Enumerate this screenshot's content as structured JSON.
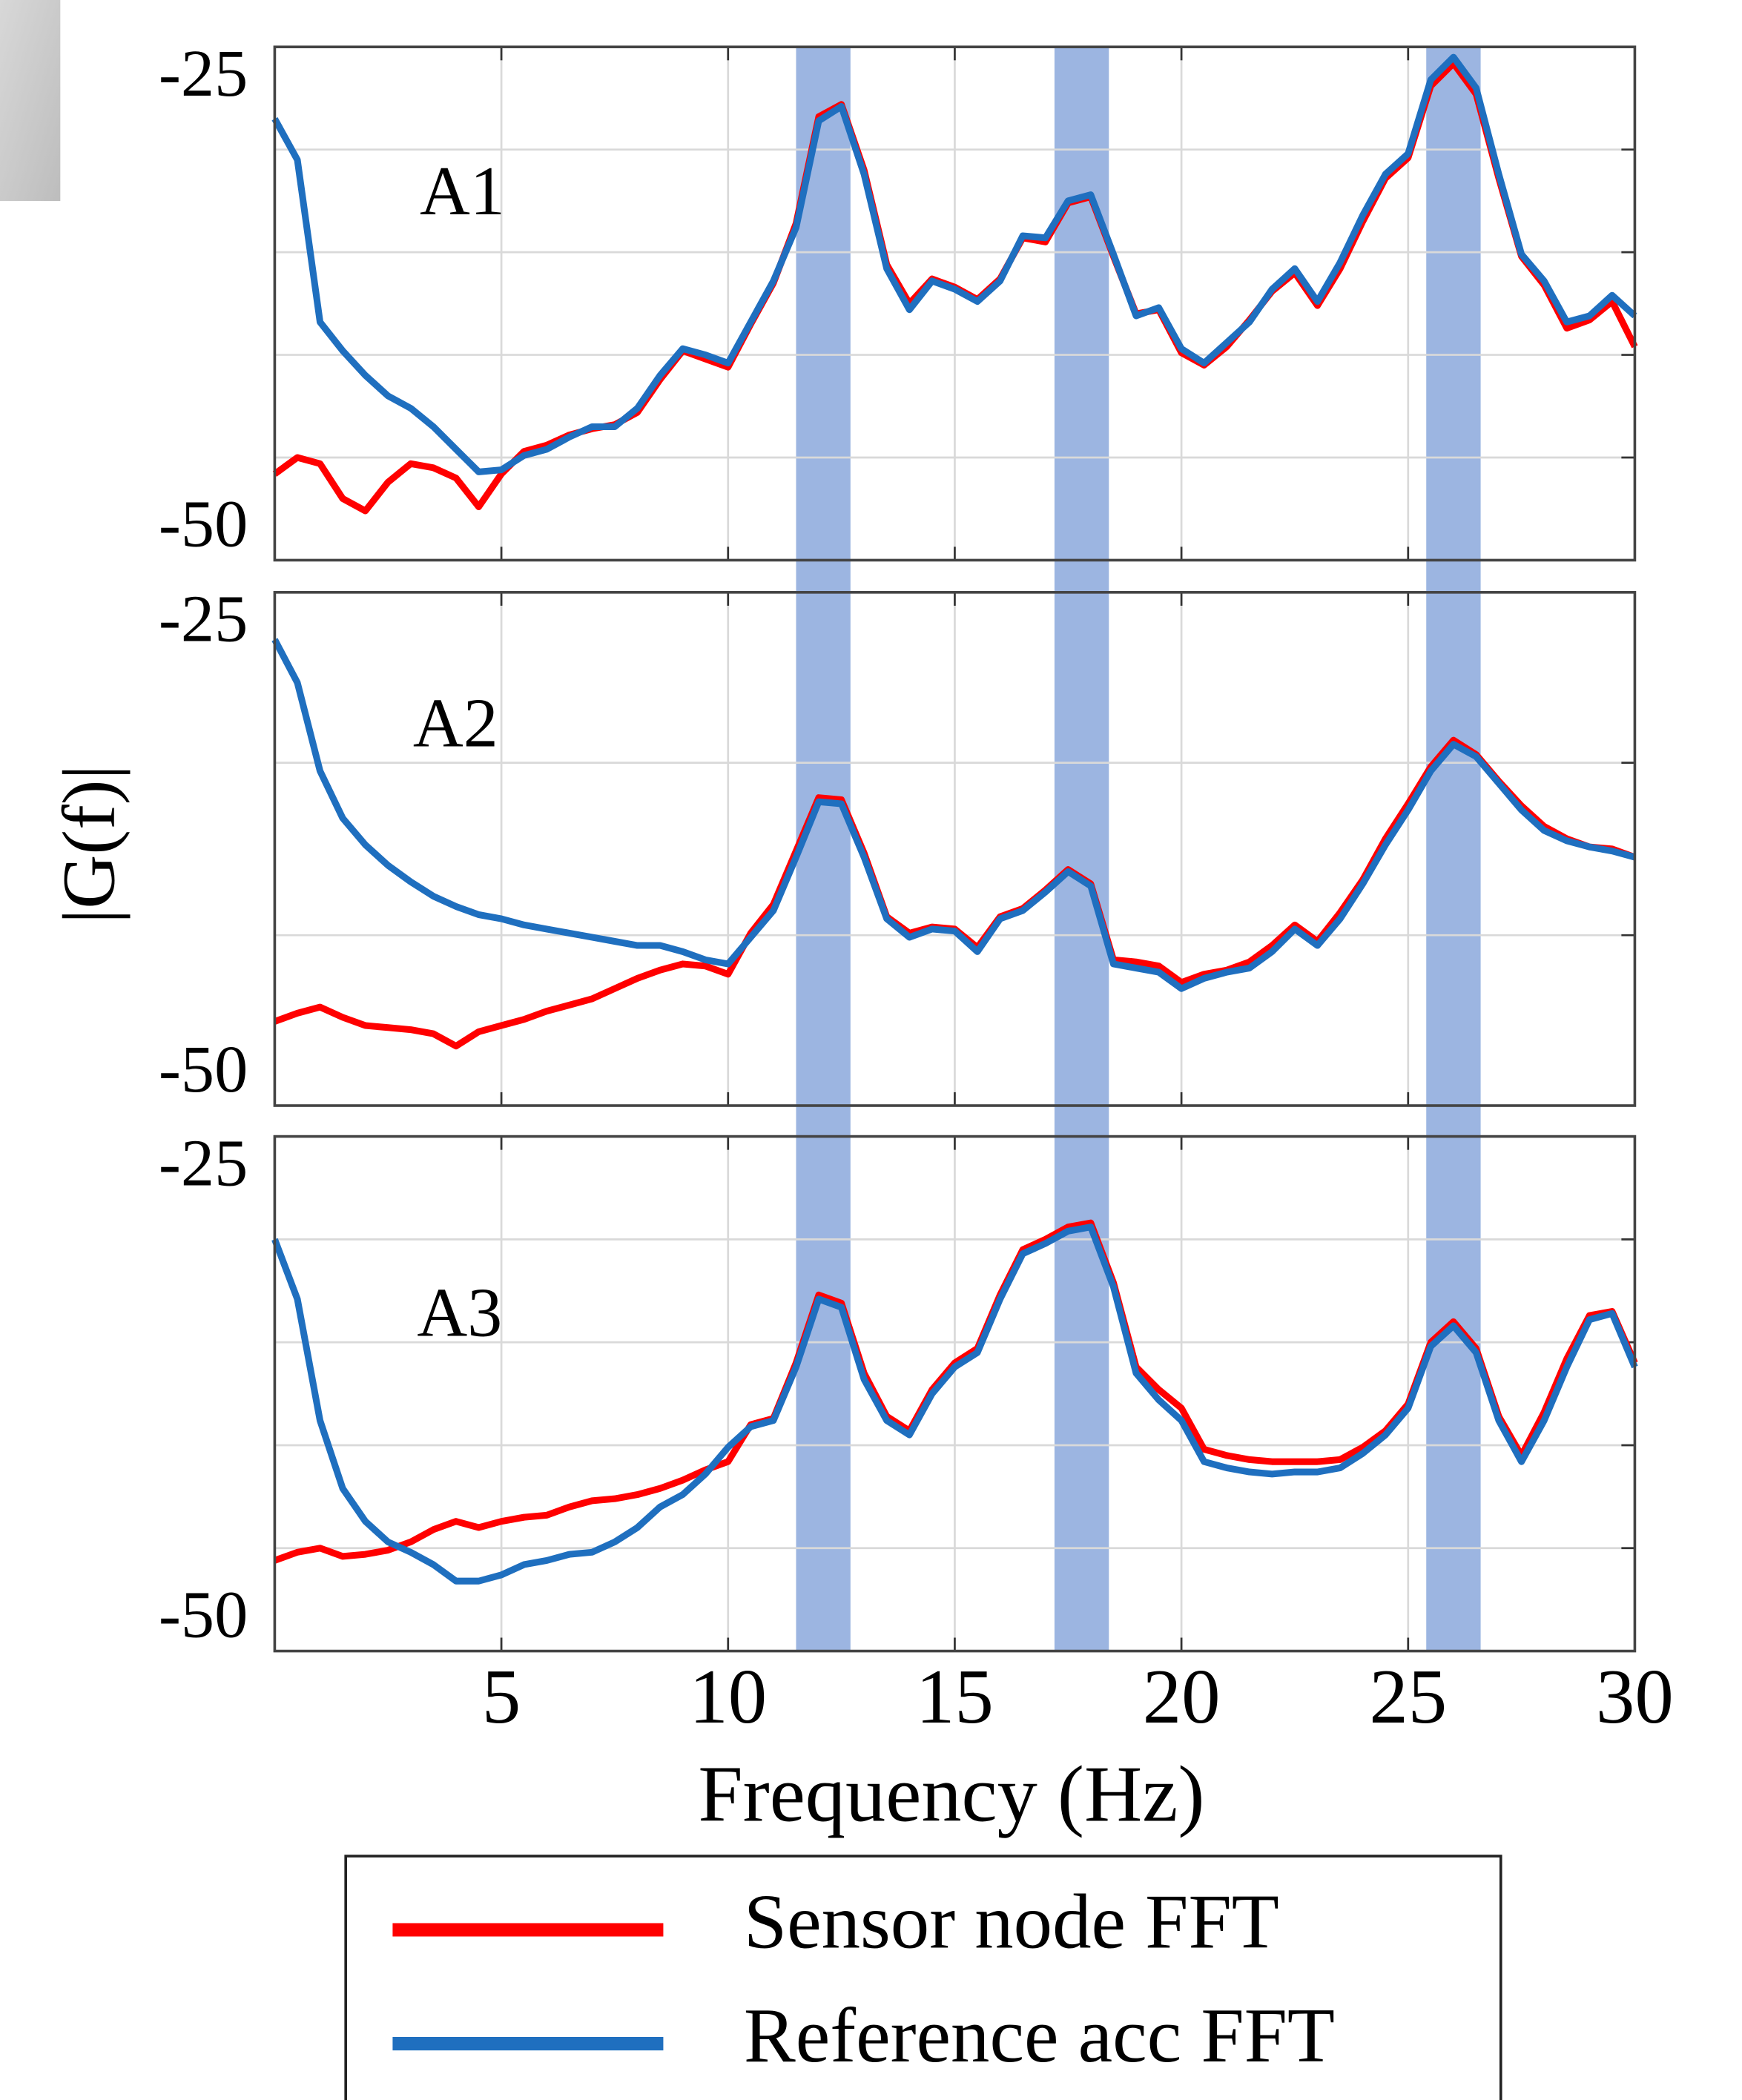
{
  "chart_data": {
    "type": "line",
    "xlabel": "Frequency (Hz)",
    "ylabel": "|G(f)|",
    "x": [
      0,
      0.5,
      1,
      1.5,
      2,
      2.5,
      3,
      3.5,
      4,
      4.5,
      5,
      5.5,
      6,
      6.5,
      7,
      7.5,
      8,
      8.5,
      9,
      9.5,
      10,
      10.5,
      11,
      11.5,
      12,
      12.5,
      13,
      13.5,
      14,
      14.5,
      15,
      15.5,
      16,
      16.5,
      17,
      17.5,
      18,
      18.5,
      19,
      19.5,
      20,
      20.5,
      21,
      21.5,
      22,
      22.5,
      23,
      23.5,
      24,
      24.5,
      25,
      25.5,
      26,
      26.5,
      27,
      27.5,
      28,
      28.5,
      29,
      29.5,
      30
    ],
    "xlim": [
      0,
      30
    ],
    "xticks": [
      5,
      10,
      15,
      20,
      25,
      30
    ],
    "grid": true,
    "bands": [
      [
        11.5,
        12.7
      ],
      [
        17.2,
        18.4
      ],
      [
        25.4,
        26.6
      ]
    ],
    "band_color": "#4a78c8",
    "legend": "bottom",
    "panels": [
      {
        "label": "A1",
        "ylim": [
          -50,
          -25
        ],
        "yticks": [
          -50,
          -25
        ],
        "ygrid": [
          -45,
          -40,
          -35,
          -30
        ],
        "series": [
          {
            "name": "Sensor node FFT",
            "color": "#ff0000",
            "values": [
              -45.8,
              -45.0,
              -45.3,
              -47.0,
              -47.6,
              -46.2,
              -45.3,
              -45.5,
              -46.0,
              -47.4,
              -45.8,
              -44.7,
              -44.4,
              -43.9,
              -43.6,
              -43.4,
              -42.8,
              -41.2,
              -39.8,
              -40.2,
              -40.6,
              -38.5,
              -36.5,
              -33.6,
              -28.4,
              -27.8,
              -31.0,
              -35.6,
              -37.5,
              -36.3,
              -36.7,
              -37.3,
              -36.3,
              -34.3,
              -34.5,
              -32.6,
              -32.3,
              -35.2,
              -38.0,
              -37.8,
              -39.9,
              -40.5,
              -39.6,
              -38.3,
              -36.9,
              -36.0,
              -37.6,
              -35.8,
              -33.5,
              -31.4,
              -30.4,
              -26.9,
              -25.8,
              -27.3,
              -31.4,
              -35.2,
              -36.6,
              -38.7,
              -38.3,
              -37.4,
              -39.6
            ]
          },
          {
            "name": "Reference acc FFT",
            "color": "#1f6fbf",
            "values": [
              -28.5,
              -30.5,
              -38.4,
              -39.8,
              -41.0,
              -42.0,
              -42.6,
              -43.5,
              -44.6,
              -45.7,
              -45.6,
              -44.9,
              -44.6,
              -44.0,
              -43.5,
              -43.5,
              -42.6,
              -41.0,
              -39.7,
              -40.0,
              -40.4,
              -38.4,
              -36.4,
              -33.8,
              -28.6,
              -27.9,
              -31.2,
              -35.8,
              -37.8,
              -36.4,
              -36.8,
              -37.4,
              -36.4,
              -34.2,
              -34.3,
              -32.5,
              -32.2,
              -35.1,
              -38.1,
              -37.7,
              -39.7,
              -40.4,
              -39.4,
              -38.4,
              -36.8,
              -35.8,
              -37.4,
              -35.5,
              -33.2,
              -31.2,
              -30.2,
              -26.6,
              -25.5,
              -27.0,
              -31.2,
              -35.1,
              -36.4,
              -38.4,
              -38.1,
              -37.1,
              -38.1
            ]
          }
        ]
      },
      {
        "label": "A2",
        "ylim": [
          -50,
          -25
        ],
        "yticks": [
          -50,
          -25
        ],
        "ygrid": [
          -41.7,
          -33.3
        ],
        "series": [
          {
            "name": "Sensor node FFT",
            "color": "#ff0000",
            "values": [
              -45.9,
              -45.5,
              -45.2,
              -45.7,
              -46.1,
              -46.2,
              -46.3,
              -46.5,
              -47.1,
              -46.4,
              -46.1,
              -45.8,
              -45.4,
              -45.1,
              -44.8,
              -44.3,
              -43.8,
              -43.4,
              -43.1,
              -43.2,
              -43.6,
              -41.6,
              -40.2,
              -37.6,
              -35.0,
              -35.1,
              -37.7,
              -40.8,
              -41.6,
              -41.3,
              -41.4,
              -42.3,
              -40.8,
              -40.4,
              -39.5,
              -38.5,
              -39.2,
              -42.9,
              -43.0,
              -43.2,
              -44.0,
              -43.6,
              -43.4,
              -43.0,
              -42.2,
              -41.2,
              -42.0,
              -40.6,
              -39.0,
              -37.0,
              -35.3,
              -33.5,
              -32.2,
              -32.9,
              -34.2,
              -35.4,
              -36.4,
              -37.0,
              -37.4,
              -37.5,
              -37.9
            ]
          },
          {
            "name": "Reference acc FFT",
            "color": "#1f6fbf",
            "values": [
              -27.3,
              -29.4,
              -33.7,
              -36.0,
              -37.3,
              -38.3,
              -39.1,
              -39.8,
              -40.3,
              -40.7,
              -40.9,
              -41.2,
              -41.4,
              -41.6,
              -41.8,
              -42.0,
              -42.2,
              -42.2,
              -42.5,
              -42.9,
              -43.1,
              -41.8,
              -40.5,
              -37.9,
              -35.2,
              -35.3,
              -37.9,
              -40.9,
              -41.8,
              -41.4,
              -41.5,
              -42.5,
              -40.9,
              -40.5,
              -39.6,
              -38.6,
              -39.3,
              -43.1,
              -43.3,
              -43.5,
              -44.3,
              -43.8,
              -43.5,
              -43.3,
              -42.5,
              -41.4,
              -42.2,
              -40.9,
              -39.2,
              -37.3,
              -35.6,
              -33.7,
              -32.4,
              -33.0,
              -34.3,
              -35.6,
              -36.6,
              -37.1,
              -37.4,
              -37.6,
              -37.9
            ]
          }
        ]
      },
      {
        "label": "A3",
        "ylim": [
          -50,
          -25
        ],
        "yticks": [
          -50,
          -25
        ],
        "ygrid": [
          -45,
          -40,
          -35,
          -30
        ],
        "series": [
          {
            "name": "Sensor node FFT",
            "color": "#ff0000",
            "values": [
              -45.6,
              -45.2,
              -45.0,
              -45.4,
              -45.3,
              -45.1,
              -44.7,
              -44.1,
              -43.7,
              -44.0,
              -43.7,
              -43.5,
              -43.4,
              -43.0,
              -42.7,
              -42.6,
              -42.4,
              -42.1,
              -41.7,
              -41.2,
              -40.8,
              -39.0,
              -38.7,
              -36.0,
              -32.7,
              -33.1,
              -36.5,
              -38.6,
              -39.3,
              -37.3,
              -36.0,
              -35.3,
              -32.7,
              -30.5,
              -30.0,
              -29.4,
              -29.2,
              -32.1,
              -36.2,
              -37.3,
              -38.2,
              -40.2,
              -40.5,
              -40.7,
              -40.8,
              -40.8,
              -40.8,
              -40.7,
              -40.1,
              -39.3,
              -38.0,
              -35.0,
              -34.0,
              -35.3,
              -38.6,
              -40.5,
              -38.4,
              -35.8,
              -33.7,
              -33.5,
              -36.0
            ]
          },
          {
            "name": "Reference acc FFT",
            "color": "#1f6fbf",
            "values": [
              -30.0,
              -32.9,
              -38.8,
              -42.1,
              -43.7,
              -44.7,
              -45.2,
              -45.8,
              -46.6,
              -46.6,
              -46.3,
              -45.8,
              -45.6,
              -45.3,
              -45.2,
              -44.7,
              -44.0,
              -43.0,
              -42.4,
              -41.4,
              -40.1,
              -39.1,
              -38.8,
              -36.2,
              -32.9,
              -33.3,
              -36.8,
              -38.8,
              -39.5,
              -37.5,
              -36.2,
              -35.5,
              -32.9,
              -30.7,
              -30.2,
              -29.6,
              -29.4,
              -32.3,
              -36.5,
              -37.8,
              -38.8,
              -40.8,
              -41.1,
              -41.3,
              -41.4,
              -41.3,
              -41.3,
              -41.1,
              -40.4,
              -39.5,
              -38.2,
              -35.2,
              -34.2,
              -35.5,
              -38.8,
              -40.8,
              -38.8,
              -36.2,
              -33.9,
              -33.6,
              -36.2
            ]
          }
        ]
      }
    ]
  }
}
